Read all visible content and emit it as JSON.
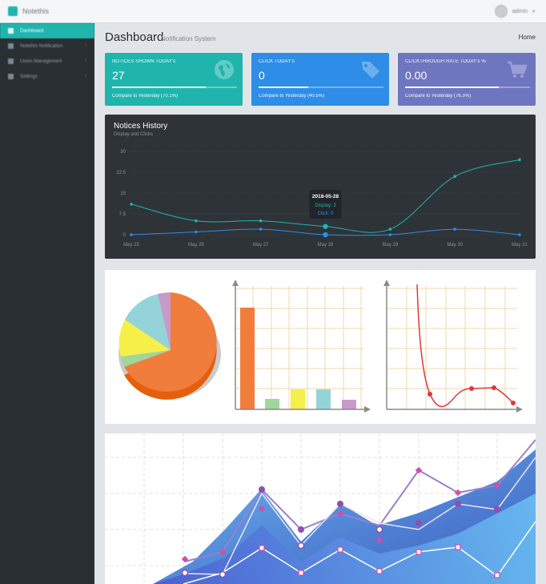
{
  "app": {
    "brand": "Notethis",
    "user": "admin"
  },
  "sidebar": {
    "items": [
      {
        "label": "Dashboard"
      },
      {
        "label": "Notethis Notification"
      },
      {
        "label": "Users Management"
      },
      {
        "label": "Settings"
      }
    ]
  },
  "header": {
    "title": "Dashboard",
    "subtitle": "Notification System",
    "breadcrumb": "Home"
  },
  "stats": [
    {
      "label": "NOTICES SHOWN TODAY's",
      "value": "27",
      "progress": 0.75,
      "compare": "Compare to Yesterday (70.1%)",
      "color": "#1fb5ad",
      "icon": "globe-icon"
    },
    {
      "label": "CLICK TODAY's",
      "value": "0",
      "progress": 0.4,
      "compare": "Compare to Yesterday (40.5%)",
      "color": "#2e8de6",
      "icon": "tag-icon"
    },
    {
      "label": "CLICKTHROUGH RATE TODAY's %",
      "value": "0.00",
      "progress": 0.75,
      "compare": "Compare to Yesterday (76.3%)",
      "color": "#6f76c0",
      "icon": "cart-icon"
    }
  ],
  "history": {
    "title": "Notices History",
    "subtitle": "Display and Clicks",
    "tooltip": {
      "date": "2018-05-28",
      "display": "Display: 3",
      "click": "Click: 0"
    }
  },
  "chart_data": [
    {
      "type": "line",
      "title": "Notices History",
      "subtitle": "Display and Clicks",
      "categories": [
        "May 25",
        "May 26",
        "May 27",
        "May 28",
        "May 29",
        "May 30",
        "May 31"
      ],
      "ylim": [
        0,
        30
      ],
      "yticks": [
        "0",
        "7.5",
        "15",
        "22.5",
        "30"
      ],
      "series": [
        {
          "name": "Display",
          "color": "#1fb5ad",
          "values": [
            11,
            5,
            5,
            3,
            2,
            21,
            27
          ]
        },
        {
          "name": "Click",
          "color": "#2e8de6",
          "values": [
            0,
            1,
            2,
            0,
            0,
            2,
            0
          ]
        }
      ]
    }
  ]
}
